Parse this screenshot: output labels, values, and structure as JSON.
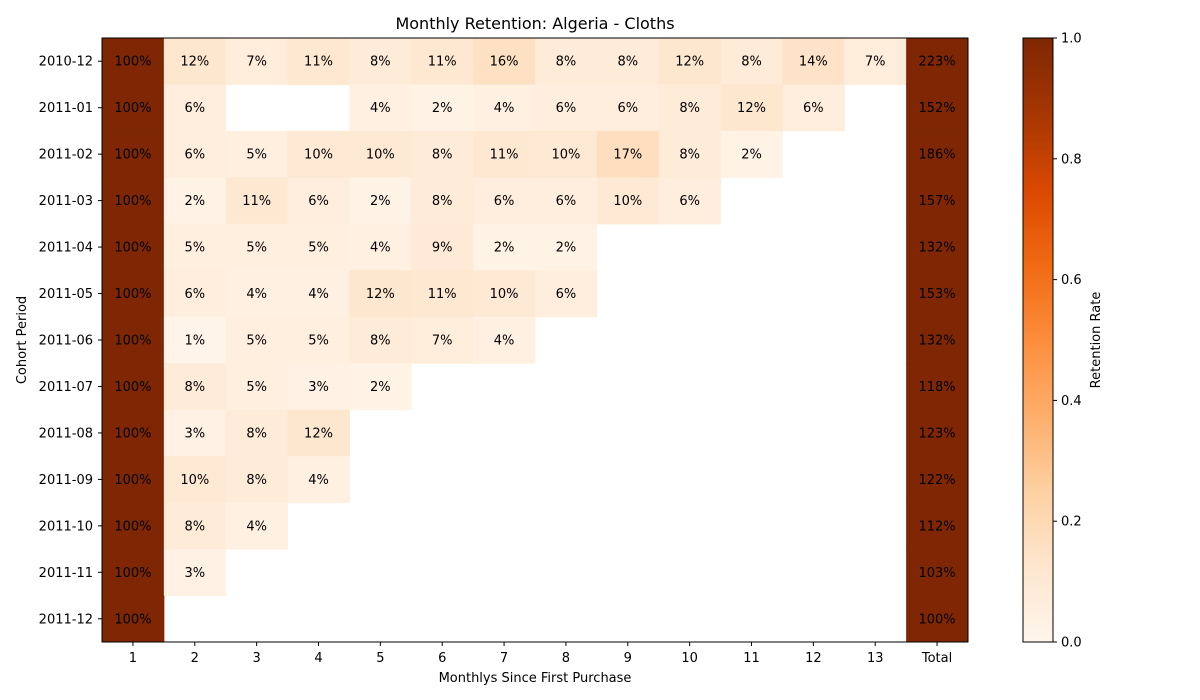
{
  "chart_data": {
    "type": "heatmap",
    "title": "Monthly Retention: Algeria - Cloths",
    "xlabel": "Monthlys Since First Purchase",
    "ylabel": "Cohort Period",
    "x_categories": [
      "1",
      "2",
      "3",
      "4",
      "5",
      "6",
      "7",
      "8",
      "9",
      "10",
      "11",
      "12",
      "13",
      "Total"
    ],
    "y_categories": [
      "2010-12",
      "2011-01",
      "2011-02",
      "2011-03",
      "2011-04",
      "2011-05",
      "2011-06",
      "2011-07",
      "2011-08",
      "2011-09",
      "2011-10",
      "2011-11",
      "2011-12"
    ],
    "values": [
      [
        100,
        12,
        7,
        11,
        8,
        11,
        16,
        8,
        8,
        12,
        8,
        14,
        7,
        223
      ],
      [
        100,
        6,
        null,
        null,
        4,
        2,
        4,
        6,
        6,
        8,
        12,
        6,
        null,
        152
      ],
      [
        100,
        6,
        5,
        10,
        10,
        8,
        11,
        10,
        17,
        8,
        2,
        null,
        null,
        186
      ],
      [
        100,
        2,
        11,
        6,
        2,
        8,
        6,
        6,
        10,
        6,
        null,
        null,
        null,
        157
      ],
      [
        100,
        5,
        5,
        5,
        4,
        9,
        2,
        2,
        null,
        null,
        null,
        null,
        null,
        132
      ],
      [
        100,
        6,
        4,
        4,
        12,
        11,
        10,
        6,
        null,
        null,
        null,
        null,
        null,
        153
      ],
      [
        100,
        1,
        5,
        5,
        8,
        7,
        4,
        null,
        null,
        null,
        null,
        null,
        null,
        132
      ],
      [
        100,
        8,
        5,
        3,
        2,
        null,
        null,
        null,
        null,
        null,
        null,
        null,
        null,
        118
      ],
      [
        100,
        3,
        8,
        12,
        null,
        null,
        null,
        null,
        null,
        null,
        null,
        null,
        null,
        123
      ],
      [
        100,
        10,
        8,
        4,
        null,
        null,
        null,
        null,
        null,
        null,
        null,
        null,
        null,
        122
      ],
      [
        100,
        8,
        4,
        null,
        null,
        null,
        null,
        null,
        null,
        null,
        null,
        null,
        null,
        112
      ],
      [
        100,
        3,
        null,
        null,
        null,
        null,
        null,
        null,
        null,
        null,
        null,
        null,
        null,
        103
      ],
      [
        100,
        null,
        null,
        null,
        null,
        null,
        null,
        null,
        null,
        null,
        null,
        null,
        null,
        100
      ]
    ],
    "value_suffix": "%",
    "colorbar": {
      "label": "Retention Rate",
      "range": [
        0,
        1
      ],
      "ticks": [
        "0.0",
        "0.2",
        "0.4",
        "0.6",
        "0.8",
        "1.0"
      ],
      "colormap": "Oranges"
    },
    "grid": false
  }
}
